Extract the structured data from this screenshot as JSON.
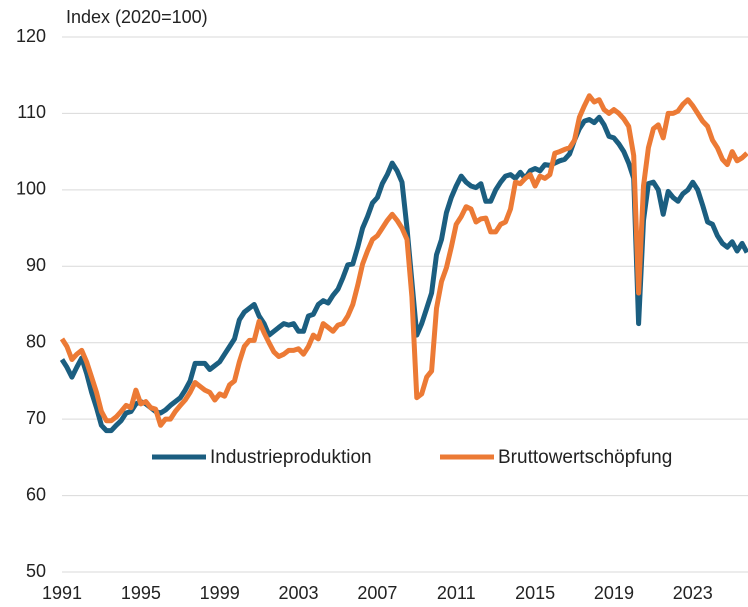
{
  "chart_data": {
    "type": "line",
    "ylabel": "Index (2020=100)",
    "x": [
      1991,
      1991.25,
      1991.5,
      1991.75,
      1992,
      1992.25,
      1992.5,
      1992.75,
      1993,
      1993.25,
      1993.5,
      1993.75,
      1994,
      1994.25,
      1994.5,
      1994.75,
      1995,
      1995.25,
      1995.5,
      1995.75,
      1996,
      1996.25,
      1996.5,
      1996.75,
      1997,
      1997.25,
      1997.5,
      1997.75,
      1998,
      1998.25,
      1998.5,
      1998.75,
      1999,
      1999.25,
      1999.5,
      1999.75,
      2000,
      2000.25,
      2000.5,
      2000.75,
      2001,
      2001.25,
      2001.5,
      2001.75,
      2002,
      2002.25,
      2002.5,
      2002.75,
      2003,
      2003.25,
      2003.5,
      2003.75,
      2004,
      2004.25,
      2004.5,
      2004.75,
      2005,
      2005.25,
      2005.5,
      2005.75,
      2006,
      2006.25,
      2006.5,
      2006.75,
      2007,
      2007.25,
      2007.5,
      2007.75,
      2008,
      2008.25,
      2008.5,
      2008.75,
      2009,
      2009.25,
      2009.5,
      2009.75,
      2010,
      2010.25,
      2010.5,
      2010.75,
      2011,
      2011.25,
      2011.5,
      2011.75,
      2012,
      2012.25,
      2012.5,
      2012.75,
      2013,
      2013.25,
      2013.5,
      2013.75,
      2014,
      2014.25,
      2014.5,
      2014.75,
      2015,
      2015.25,
      2015.5,
      2015.75,
      2016,
      2016.25,
      2016.5,
      2016.75,
      2017,
      2017.25,
      2017.5,
      2017.75,
      2018,
      2018.25,
      2018.5,
      2018.75,
      2019,
      2019.25,
      2019.5,
      2019.75,
      2020,
      2020.25,
      2020.5,
      2020.75,
      2021,
      2021.25,
      2021.5,
      2021.75,
      2022,
      2022.25,
      2022.5,
      2022.75,
      2023,
      2023.25,
      2023.5,
      2023.75,
      2024,
      2024.25,
      2024.5,
      2024.75,
      2025,
      2025.25,
      2025.5,
      2025.75
    ],
    "series": [
      {
        "name": "Industrieproduktion",
        "color": "#1b5e80",
        "values": [
          77.8,
          76.8,
          75.5,
          76.8,
          78,
          76,
          73.5,
          71.5,
          69.2,
          68.5,
          68.5,
          69.2,
          69.8,
          70.8,
          71,
          72,
          72.3,
          72,
          71.5,
          71,
          70.8,
          71.2,
          71.8,
          72.3,
          72.8,
          73.8,
          75,
          77.3,
          77.3,
          77.3,
          76.5,
          77,
          77.5,
          78.5,
          79.5,
          80.5,
          83,
          84,
          84.5,
          85,
          83.5,
          82.5,
          81,
          81.5,
          82,
          82.5,
          82.3,
          82.5,
          81.5,
          81.5,
          83.5,
          83.7,
          85,
          85.5,
          85.2,
          86.2,
          87,
          88.5,
          90.2,
          90.3,
          92.5,
          95,
          96.5,
          98.3,
          99,
          100.8,
          102,
          103.5,
          102.5,
          101,
          95,
          88,
          81,
          82.5,
          84.5,
          86.5,
          91.5,
          93.5,
          97,
          99,
          100.5,
          101.8,
          101,
          100.5,
          100.3,
          100.8,
          98.5,
          98.5,
          100,
          101,
          101.8,
          102,
          101.5,
          102.3,
          101.5,
          102.5,
          102.8,
          102.5,
          103.3,
          103.2,
          103.5,
          103.8,
          104,
          104.7,
          106.5,
          108,
          109,
          109.2,
          108.8,
          109.5,
          108.5,
          107,
          106.8,
          106,
          105,
          103.5,
          101.5,
          82.5,
          96,
          100.8,
          101,
          100,
          96.8,
          99.8,
          99,
          98.5,
          99.5,
          100,
          101,
          100,
          98,
          95.8,
          95.5,
          94,
          93,
          92.5,
          93.2,
          92,
          93,
          91.8
        ]
      },
      {
        "name": "Bruttowertschöpfung",
        "color": "#ec7a35",
        "values": [
          80.5,
          79.5,
          77.8,
          78.5,
          79,
          77.5,
          75.5,
          73.5,
          71,
          69.8,
          69.8,
          70.3,
          71,
          71.8,
          71.5,
          73.8,
          72,
          72.3,
          71.5,
          71.3,
          69.2,
          70,
          70,
          71,
          71.8,
          72.5,
          73.5,
          74.8,
          74.3,
          73.8,
          73.5,
          72.5,
          73.3,
          73,
          74.5,
          75,
          77.5,
          79.5,
          80.3,
          80.3,
          82.8,
          81.3,
          80,
          78.8,
          78.2,
          78.5,
          79,
          79,
          79.2,
          78.5,
          79.5,
          81,
          80.5,
          82.5,
          82,
          81.5,
          82.3,
          82.5,
          83.5,
          85,
          87.5,
          90.3,
          92,
          93.5,
          94,
          95,
          96,
          96.8,
          96,
          95,
          93.5,
          86,
          72.8,
          73.3,
          75.5,
          76.3,
          84.5,
          88,
          89.8,
          92.5,
          95.5,
          96.5,
          97.8,
          97.5,
          95.8,
          96.2,
          96.3,
          94.5,
          94.5,
          95.5,
          95.8,
          97.5,
          101,
          100.8,
          101.5,
          102,
          100.5,
          101.8,
          101.5,
          102,
          104.8,
          105,
          105.3,
          105.5,
          106.5,
          109.5,
          111,
          112.3,
          111.5,
          111.8,
          110.5,
          110,
          110.5,
          110,
          109.3,
          108.3,
          104.5,
          86.5,
          100.5,
          105.5,
          108,
          108.5,
          106.8,
          110,
          110,
          110.3,
          111.2,
          111.8,
          111,
          110,
          109,
          108.3,
          106.5,
          105.5,
          104,
          103.3,
          105,
          103.8,
          104.2,
          104.8
        ]
      }
    ],
    "xlim": [
      1991,
      2025.75
    ],
    "xticks": [
      1991,
      1995,
      1999,
      2003,
      2007,
      2011,
      2015,
      2019,
      2023
    ],
    "ylim": [
      50,
      120
    ],
    "yticks": [
      50,
      60,
      70,
      80,
      90,
      100,
      110,
      120
    ],
    "grid": true,
    "legend": "center"
  }
}
